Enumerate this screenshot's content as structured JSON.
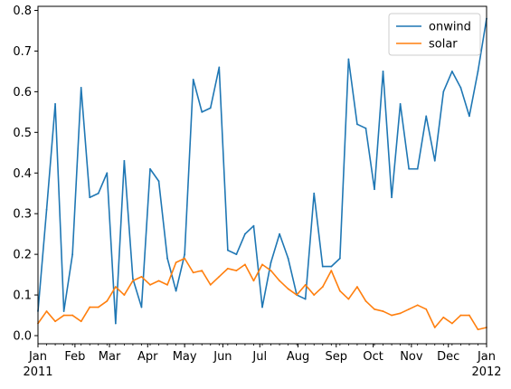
{
  "chart_data": {
    "type": "line",
    "title": "",
    "xlabel": "",
    "ylabel": "",
    "ylim": [
      -0.02,
      0.81
    ],
    "yticks": [
      "0.0",
      "0.1",
      "0.2",
      "0.3",
      "0.4",
      "0.5",
      "0.6",
      "0.7",
      "0.8"
    ],
    "ytick_values": [
      0.0,
      0.1,
      0.2,
      0.3,
      0.4,
      0.5,
      0.6,
      0.7,
      0.8
    ],
    "xlim": [
      "2011-01-02",
      "2012-01-01"
    ],
    "x_major_ticks": [
      {
        "date": "2011-01-01",
        "label": "Jan",
        "sublabel": "2011"
      },
      {
        "date": "2011-02-01",
        "label": "Feb",
        "sublabel": ""
      },
      {
        "date": "2011-03-01",
        "label": "Mar",
        "sublabel": ""
      },
      {
        "date": "2011-04-01",
        "label": "Apr",
        "sublabel": ""
      },
      {
        "date": "2011-05-01",
        "label": "May",
        "sublabel": ""
      },
      {
        "date": "2011-06-01",
        "label": "Jun",
        "sublabel": ""
      },
      {
        "date": "2011-07-01",
        "label": "Jul",
        "sublabel": ""
      },
      {
        "date": "2011-08-01",
        "label": "Aug",
        "sublabel": ""
      },
      {
        "date": "2011-09-01",
        "label": "Sep",
        "sublabel": ""
      },
      {
        "date": "2011-10-01",
        "label": "Oct",
        "sublabel": ""
      },
      {
        "date": "2011-11-01",
        "label": "Nov",
        "sublabel": ""
      },
      {
        "date": "2011-12-01",
        "label": "Dec",
        "sublabel": ""
      },
      {
        "date": "2012-01-01",
        "label": "Jan",
        "sublabel": "2012"
      }
    ],
    "x": [
      "2011-01-02",
      "2011-01-09",
      "2011-01-16",
      "2011-01-23",
      "2011-01-30",
      "2011-02-06",
      "2011-02-13",
      "2011-02-20",
      "2011-02-27",
      "2011-03-06",
      "2011-03-13",
      "2011-03-20",
      "2011-03-27",
      "2011-04-03",
      "2011-04-10",
      "2011-04-17",
      "2011-04-24",
      "2011-05-01",
      "2011-05-08",
      "2011-05-15",
      "2011-05-22",
      "2011-05-29",
      "2011-06-05",
      "2011-06-12",
      "2011-06-19",
      "2011-06-26",
      "2011-07-03",
      "2011-07-10",
      "2011-07-17",
      "2011-07-24",
      "2011-07-31",
      "2011-08-07",
      "2011-08-14",
      "2011-08-21",
      "2011-08-28",
      "2011-09-04",
      "2011-09-11",
      "2011-09-18",
      "2011-09-25",
      "2011-10-02",
      "2011-10-09",
      "2011-10-16",
      "2011-10-23",
      "2011-10-30",
      "2011-11-06",
      "2011-11-13",
      "2011-11-20",
      "2011-11-27",
      "2011-12-04",
      "2011-12-11",
      "2011-12-18",
      "2011-12-25",
      "2012-01-01"
    ],
    "series": [
      {
        "name": "onwind",
        "color": "#1f77b4",
        "values": [
          0.06,
          0.31,
          0.57,
          0.06,
          0.2,
          0.61,
          0.34,
          0.35,
          0.4,
          0.03,
          0.43,
          0.14,
          0.07,
          0.41,
          0.38,
          0.19,
          0.11,
          0.2,
          0.63,
          0.55,
          0.56,
          0.66,
          0.21,
          0.2,
          0.25,
          0.27,
          0.07,
          0.18,
          0.25,
          0.19,
          0.1,
          0.09,
          0.35,
          0.17,
          0.17,
          0.19,
          0.68,
          0.52,
          0.51,
          0.36,
          0.65,
          0.34,
          0.57,
          0.41,
          0.41,
          0.54,
          0.43,
          0.6,
          0.65,
          0.61,
          0.54,
          0.65,
          0.78
        ]
      },
      {
        "name": "solar",
        "color": "#ff7f0e",
        "values": [
          0.03,
          0.06,
          0.035,
          0.05,
          0.05,
          0.035,
          0.07,
          0.07,
          0.085,
          0.12,
          0.1,
          0.135,
          0.145,
          0.125,
          0.135,
          0.125,
          0.18,
          0.19,
          0.155,
          0.16,
          0.125,
          0.145,
          0.165,
          0.16,
          0.175,
          0.135,
          0.175,
          0.16,
          0.135,
          0.115,
          0.1,
          0.125,
          0.1,
          0.12,
          0.16,
          0.11,
          0.09,
          0.12,
          0.085,
          0.065,
          0.06,
          0.05,
          0.055,
          0.065,
          0.075,
          0.065,
          0.02,
          0.045,
          0.03,
          0.05,
          0.05,
          0.015,
          0.02
        ]
      }
    ],
    "legend": {
      "placement": "top-right",
      "entries": [
        "onwind",
        "solar"
      ]
    },
    "grid": false
  }
}
